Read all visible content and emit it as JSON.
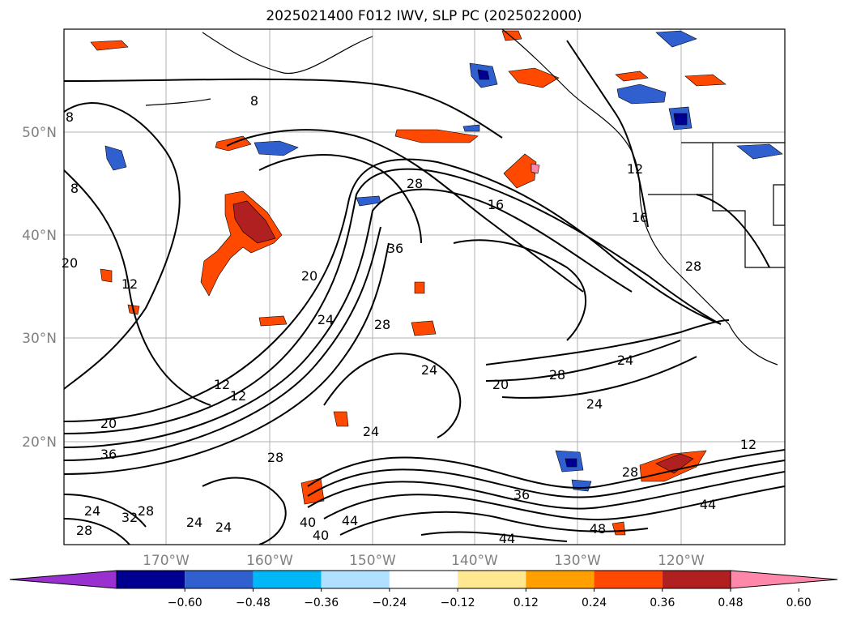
{
  "title": "2025021400 F012 IWV, SLP PC (2025022000)",
  "map": {
    "lat_labels": [
      "50°N",
      "40°N",
      "30°N",
      "20°N"
    ],
    "lon_labels": [
      "170°W",
      "160°W",
      "150°W",
      "140°W",
      "130°W",
      "120°W"
    ],
    "gridlines": true,
    "contour_labels": [
      "8",
      "8",
      "8",
      "20",
      "12",
      "16",
      "28",
      "36",
      "20",
      "24",
      "28",
      "24",
      "28",
      "24",
      "20",
      "24",
      "12",
      "12",
      "20",
      "36",
      "28",
      "24",
      "12",
      "28",
      "36",
      "44",
      "48",
      "44",
      "40",
      "40",
      "44",
      "24",
      "28",
      "32",
      "24",
      "28",
      "24",
      "12",
      "16",
      "28"
    ]
  },
  "colorbar": {
    "tick_labels": [
      "−0.60",
      "−0.48",
      "−0.36",
      "−0.24",
      "−0.12",
      "0.12",
      "0.24",
      "0.36",
      "0.48",
      "0.60"
    ],
    "colors": [
      "#9b30d0",
      "#000090",
      "#3060d0",
      "#00b8f8",
      "#b0e0ff",
      "#ffffff",
      "#ffe890",
      "#ffa000",
      "#ff4800",
      "#b02020",
      "#ff88aa"
    ]
  }
}
